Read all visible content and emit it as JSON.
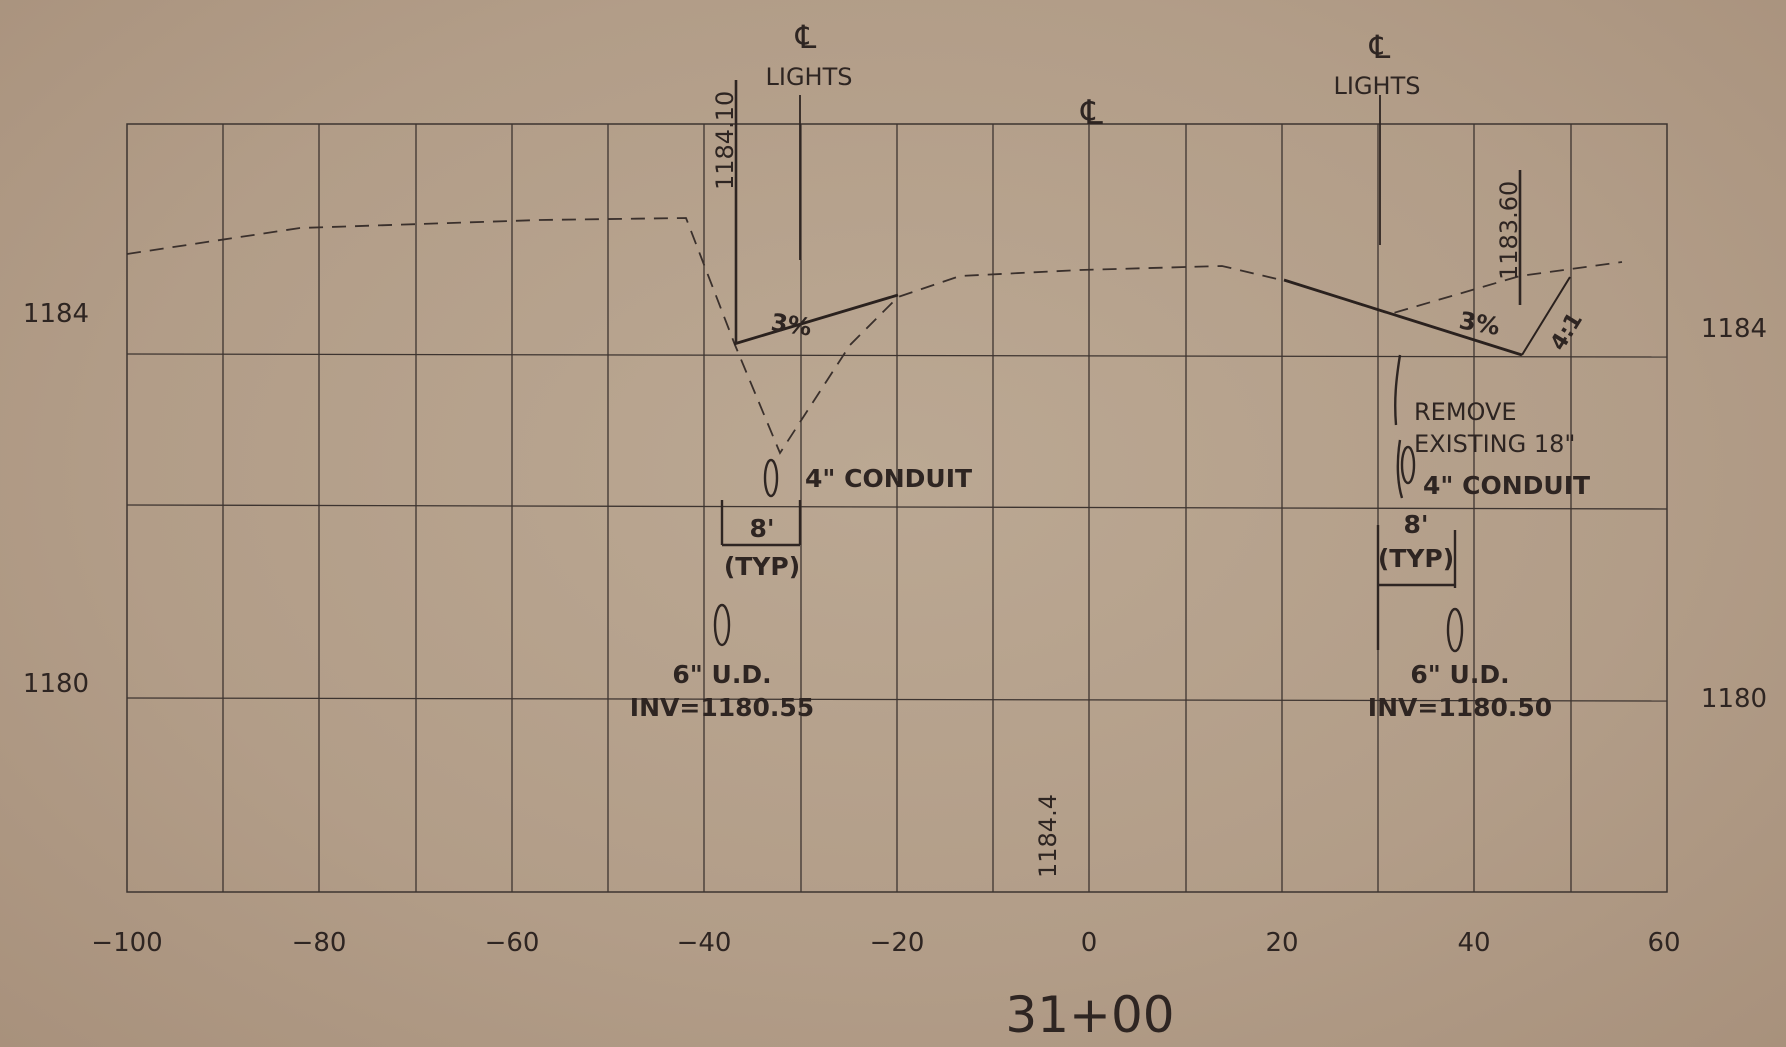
{
  "drawing": {
    "station": "31+00",
    "centerline_symbol": "℄",
    "left_elev_labels": [
      "1184",
      "1180"
    ],
    "right_elev_labels": [
      "1184",
      "1180"
    ],
    "x_axis_ticks": [
      "−100",
      "−80",
      "−60",
      "−40",
      "−20",
      "0",
      "20",
      "40",
      "60"
    ],
    "cl_lights_left": "LIGHTS",
    "cl_lights_right": "LIGHTS",
    "elev_left_top": "1184.10",
    "elev_right_top": "1183.60",
    "slope_left": "3%",
    "slope_right": "3%",
    "side_slope": "4:1",
    "conduit_left": "4\"  CONDUIT",
    "conduit_right": "4\"  CONDUIT",
    "spacing_left": "8'",
    "spacing_left_typ": "(TYP)",
    "spacing_right": "8'",
    "spacing_right_typ": "(TYP)",
    "ud_left": "6\"  U.D.",
    "inv_left": "INV=1180.55",
    "ud_right": "6\"  U.D.",
    "inv_right": "INV=1180.50",
    "remove_line1": "REMOVE",
    "remove_line2": "EXISTING 18\"",
    "center_elev": "1184.4",
    "colors": {
      "ink": "#2e2522",
      "paper": "#b39f8a"
    }
  }
}
